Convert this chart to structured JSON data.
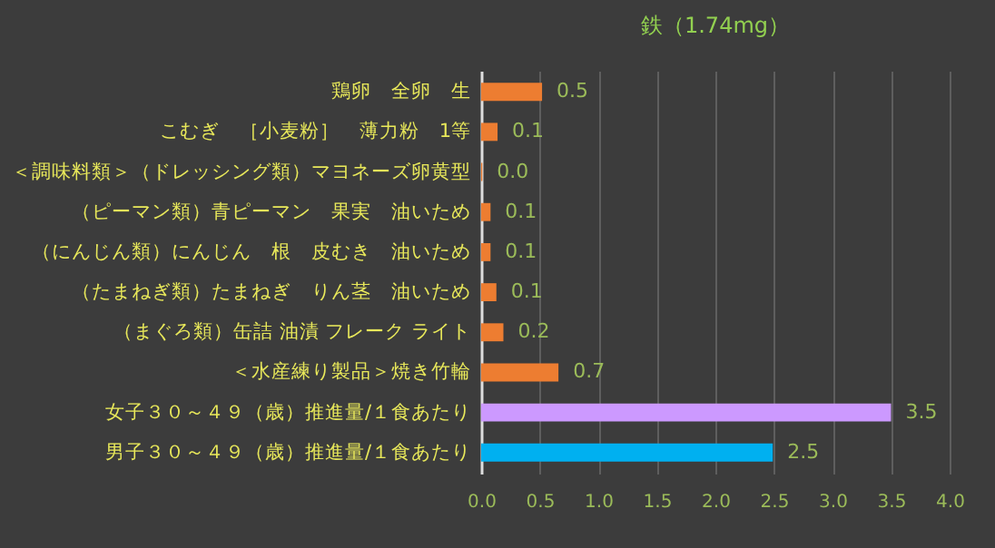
{
  "chart_data": {
    "type": "bar",
    "orientation": "horizontal",
    "title": "鉄（1.74mg）",
    "categories": [
      "鶏卵　全卵　生",
      "こむぎ　［小麦粉］　薄力粉　1等",
      "＜調味料類＞（ドレッシング類）マヨネーズ卵黄型",
      "（ピーマン類）青ピーマン　果実　油いため",
      "（にんじん類）にんじん　根　皮むき　油いため",
      "（たまねぎ類）たまねぎ　りん茎　油いため",
      "（まぐろ類）缶詰 油漬 フレーク ライト",
      "＜水産練り製品＞焼き竹輪",
      "女子３０～４９（歳）推進量/１食あたり",
      "男子３０～４９（歳）推進量/１食あたり"
    ],
    "values": [
      0.52,
      0.14,
      0.01,
      0.08,
      0.08,
      0.13,
      0.19,
      0.66,
      3.5,
      2.49
    ],
    "value_labels": [
      "0.5",
      "0.1",
      "0.0",
      "0.1",
      "0.1",
      "0.1",
      "0.2",
      "0.7",
      "3.5",
      "2.5"
    ],
    "colors": [
      "#ed7d31",
      "#ed7d31",
      "#ed7d31",
      "#ed7d31",
      "#ed7d31",
      "#ed7d31",
      "#ed7d31",
      "#ed7d31",
      "#cc99ff",
      "#00b0f0"
    ],
    "xlim": [
      0,
      4
    ],
    "xticks": [
      {
        "value": 0,
        "label": "0.0"
      },
      0.5,
      {
        "value": 1,
        "label": "1.0"
      },
      1.5,
      {
        "value": 2,
        "label": "2.0"
      },
      2.5,
      {
        "value": 3,
        "label": "3.0"
      },
      3.5,
      {
        "value": 4,
        "label": "4.0"
      }
    ],
    "grid": "x"
  }
}
